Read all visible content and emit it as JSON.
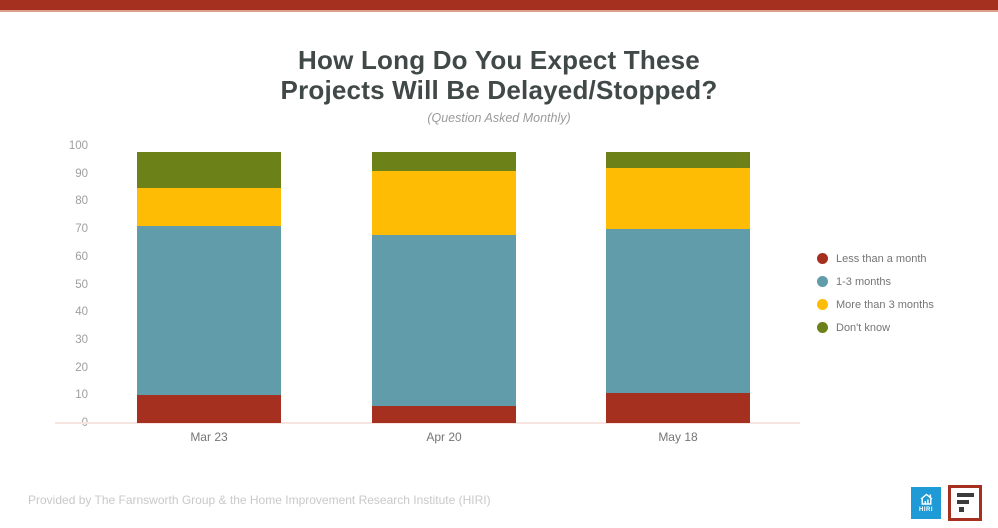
{
  "banner": {
    "color": "#a5301f",
    "edge_color": "#dfa18c"
  },
  "title": {
    "line1": "How Long Do You Expect These",
    "line2": "Projects Will Be Delayed/Stopped?",
    "subtitle": "(Question Asked Monthly)"
  },
  "chart_data": {
    "type": "bar",
    "stacked": true,
    "categories": [
      "Mar 23",
      "Apr 20",
      "May 18"
    ],
    "series": [
      {
        "name": "Less than a month",
        "color": "#a5301f",
        "values": [
          10,
          6,
          11
        ]
      },
      {
        "name": "1-3 months",
        "color": "#619cab",
        "values": [
          61,
          62,
          59
        ]
      },
      {
        "name": "More than 3 months",
        "color": "#febc05",
        "values": [
          14,
          23,
          22
        ]
      },
      {
        "name": "Don't know",
        "color": "#6c8117",
        "values": [
          13,
          7,
          6
        ]
      }
    ],
    "stack_totals": [
      98,
      98,
      98
    ],
    "title": "How Long Do You Expect These Projects Will Be Delayed/Stopped?",
    "subtitle": "(Question Asked Monthly)",
    "xlabel": "",
    "ylabel": "",
    "ylim": [
      0,
      100
    ],
    "yticks": [
      0,
      10,
      20,
      30,
      40,
      50,
      60,
      70,
      80,
      90,
      100
    ],
    "grid": false,
    "legend_position": "right"
  },
  "footer": {
    "credit": "Provided by The Farnsworth Group & the Home Improvement Research Institute (HIRI)"
  },
  "logos": {
    "hiri_label": "HIRI",
    "hiri_color": "#1e9bd6",
    "farnsworth_border_color": "#a5301f"
  }
}
